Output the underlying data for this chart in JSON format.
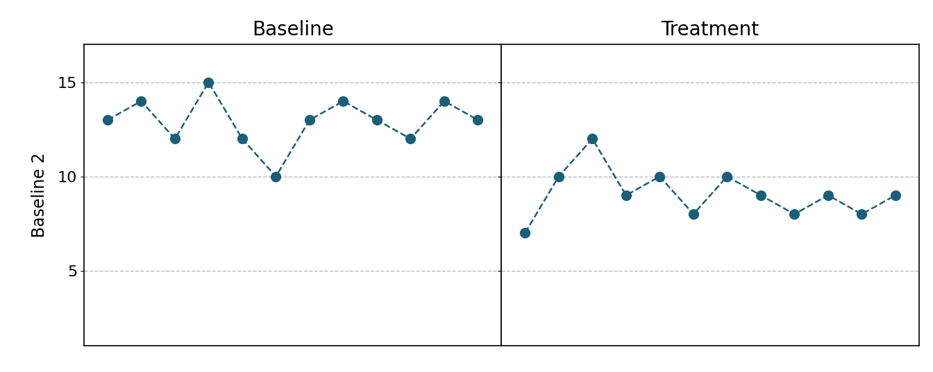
{
  "baseline_y": [
    13,
    14,
    12,
    15,
    12,
    10,
    13,
    14,
    13,
    12,
    14,
    13
  ],
  "treatment_y": [
    7,
    10,
    12,
    9,
    10,
    8,
    10,
    9,
    8,
    9,
    8,
    9
  ],
  "baseline_label": "Baseline",
  "treatment_label": "Treatment",
  "ylabel": "Baseline 2",
  "ylim": [
    1,
    17
  ],
  "yticks": [
    5,
    10,
    15
  ],
  "grid_color": "#bbbbbb",
  "line_color": "#1a5f7a",
  "marker_color": "#1a5f7a",
  "background_color": "#ffffff",
  "title_fontsize": 20,
  "label_fontsize": 17,
  "tick_fontsize": 16
}
